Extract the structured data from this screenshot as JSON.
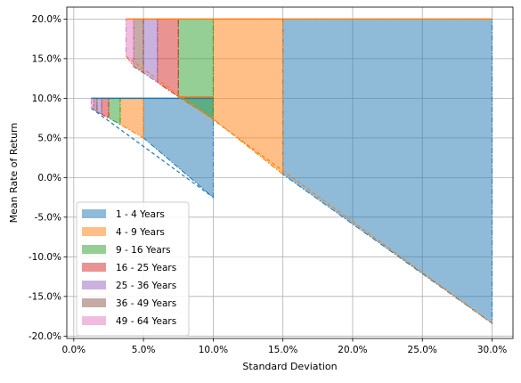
{
  "chart_data": {
    "type": "area",
    "xlabel": "Standard Deviation",
    "ylabel": "Mean Rate of Return",
    "xlim": [
      -0.5,
      31.5
    ],
    "ylim": [
      -20.3,
      21.5
    ],
    "x_ticks": [
      0,
      5,
      10,
      15,
      20,
      25,
      30
    ],
    "x_tick_labels": [
      "0.0%",
      "5.0%",
      "10.0%",
      "15.0%",
      "20.0%",
      "25.0%",
      "30.0%"
    ],
    "y_ticks": [
      20,
      15,
      10,
      5,
      0,
      -5,
      -10,
      -15,
      -20
    ],
    "y_tick_labels": [
      "20.0%",
      "15.0%",
      "10.0%",
      "5.0%",
      "0.0%",
      "-5.0%",
      "-10.0%",
      "-15.0%",
      "-20.0%"
    ],
    "grid": true,
    "legend_position": "lower-left",
    "colors": [
      "#1f77b4",
      "#ff7f0e",
      "#2ca02c",
      "#d62728",
      "#9467bd",
      "#8c564b",
      "#e377c2"
    ],
    "series": [
      {
        "name": "1 - 4 Years",
        "small": {
          "x": [
            5.0,
            10.0
          ],
          "top": [
            10,
            10
          ],
          "bottom": [
            5.0,
            -2.5
          ]
        },
        "large": {
          "x": [
            15.0,
            30.0
          ],
          "top": [
            20,
            20
          ],
          "bottom": [
            0.4,
            -18.4
          ]
        }
      },
      {
        "name": "4 - 9 Years",
        "small": {
          "x": [
            3.33,
            5.0
          ],
          "top": [
            10,
            10
          ],
          "bottom": [
            6.7,
            5.0
          ]
        },
        "large": {
          "x": [
            10.0,
            15.0
          ],
          "top": [
            20,
            20
          ],
          "bottom": [
            7.4,
            0.4
          ]
        }
      },
      {
        "name": "9 - 16 Years",
        "small": {
          "x": [
            2.5,
            3.33
          ],
          "top": [
            10,
            10
          ],
          "bottom": [
            7.5,
            6.7
          ]
        },
        "large": {
          "x": [
            7.5,
            10.0
          ],
          "top": [
            20,
            20
          ],
          "bottom": [
            10.2,
            7.4
          ]
        }
      },
      {
        "name": "16 - 25 Years",
        "small": {
          "x": [
            2.0,
            2.5
          ],
          "top": [
            10,
            10
          ],
          "bottom": [
            8.0,
            7.5
          ]
        },
        "large": {
          "x": [
            6.0,
            7.5
          ],
          "top": [
            20,
            20
          ],
          "bottom": [
            12.0,
            10.2
          ]
        }
      },
      {
        "name": "25 - 36 Years",
        "small": {
          "x": [
            1.67,
            2.0
          ],
          "top": [
            10,
            10
          ],
          "bottom": [
            8.33,
            8.0
          ]
        },
        "large": {
          "x": [
            5.0,
            6.0
          ],
          "top": [
            20,
            20
          ],
          "bottom": [
            13.2,
            12.0
          ]
        }
      },
      {
        "name": "36 - 49 Years",
        "small": {
          "x": [
            1.43,
            1.67
          ],
          "top": [
            10,
            10
          ],
          "bottom": [
            8.57,
            8.33
          ]
        },
        "large": {
          "x": [
            4.29,
            5.0
          ],
          "top": [
            20,
            20
          ],
          "bottom": [
            14.0,
            13.2
          ]
        }
      },
      {
        "name": "49 - 64 Years",
        "small": {
          "x": [
            1.25,
            1.43
          ],
          "top": [
            10,
            10
          ],
          "bottom": [
            8.75,
            8.57
          ]
        },
        "large": {
          "x": [
            3.75,
            4.29
          ],
          "top": [
            20,
            20
          ],
          "bottom": [
            15.3,
            14.0
          ]
        }
      }
    ],
    "outlines": [
      {
        "color": "#1f77b4",
        "top": {
          "x": [
            1.25,
            10.0
          ],
          "y": [
            10,
            10
          ]
        },
        "bottom": {
          "x": [
            1.25,
            10.0
          ],
          "y": [
            8.75,
            -2.5
          ]
        }
      },
      {
        "color": "#ff7f0e",
        "top": {
          "x": [
            3.75,
            30.0
          ],
          "y": [
            20,
            20
          ]
        },
        "bottom": {
          "x": [
            3.75,
            30.0
          ],
          "y": [
            15.3,
            -18.4
          ]
        }
      },
      {
        "color": "#ff7f0e",
        "top": {
          "x": [
            7.5,
            10.0
          ],
          "y": [
            10.2,
            10.2
          ]
        },
        "bottom": {
          "x": [
            7.5,
            10.0
          ],
          "y": [
            10.2,
            7.4
          ]
        }
      }
    ]
  }
}
